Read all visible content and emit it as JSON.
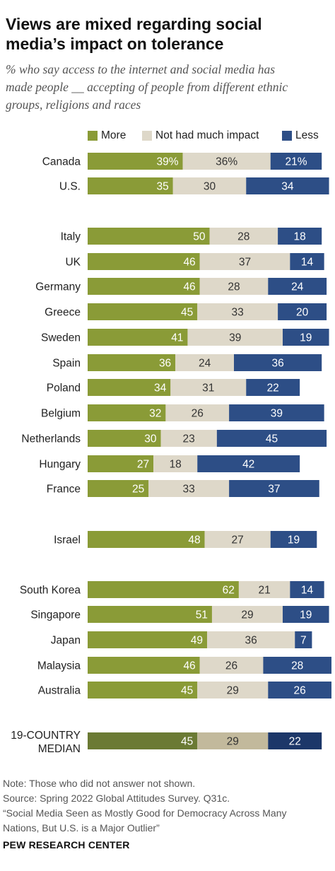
{
  "title_line1": "Views are mixed regarding social",
  "title_line2": "media’s impact on tolerance",
  "subtitle_line1": "% who say access to the internet and social media has",
  "subtitle_line2": "made people __ accepting of people from different ethnic",
  "subtitle_line3": "groups, religions and races",
  "legend": [
    {
      "label": "More",
      "color": "#8a9b37"
    },
    {
      "label": "Not had much impact",
      "color": "#ded8c9"
    },
    {
      "label": "Less",
      "color": "#2d4e86"
    }
  ],
  "chart_data": {
    "type": "bar",
    "orientation": "horizontal",
    "stacked": true,
    "categories": [
      "Canada",
      "U.S.",
      "Italy",
      "UK",
      "Germany",
      "Greece",
      "Sweden",
      "Spain",
      "Poland",
      "Belgium",
      "Netherlands",
      "Hungary",
      "France",
      "Israel",
      "South Korea",
      "Singapore",
      "Japan",
      "Malaysia",
      "Australia",
      "19-COUNTRY MEDIAN"
    ],
    "series": [
      {
        "name": "More",
        "values": [
          39,
          35,
          50,
          46,
          46,
          45,
          41,
          36,
          34,
          32,
          30,
          27,
          25,
          48,
          62,
          51,
          49,
          46,
          45,
          45
        ]
      },
      {
        "name": "Not had much impact",
        "values": [
          36,
          30,
          28,
          37,
          28,
          33,
          39,
          24,
          31,
          26,
          23,
          18,
          33,
          27,
          21,
          29,
          36,
          26,
          29,
          29
        ]
      },
      {
        "name": "Less",
        "values": [
          21,
          34,
          18,
          14,
          24,
          20,
          19,
          36,
          22,
          39,
          45,
          42,
          37,
          19,
          14,
          19,
          7,
          28,
          26,
          22
        ]
      }
    ],
    "first_row_percent_labels": [
      "39%",
      "36%",
      "21%"
    ],
    "median_label_lines": [
      "19-COUNTRY",
      "MEDIAN"
    ],
    "median_colors": [
      "#6b7a34",
      "#c2b99c",
      "#1c3769"
    ]
  },
  "notes": {
    "line1": "Note: Those who did not answer not shown.",
    "line2": "Source: Spring 2022 Global Attitudes Survey. Q31c.",
    "line3": "“Social Media Seen as Mostly Good for Democracy Across Many",
    "line4": "Nations, But U.S. is a Major Outlier”"
  },
  "footer": "PEW RESEARCH CENTER"
}
